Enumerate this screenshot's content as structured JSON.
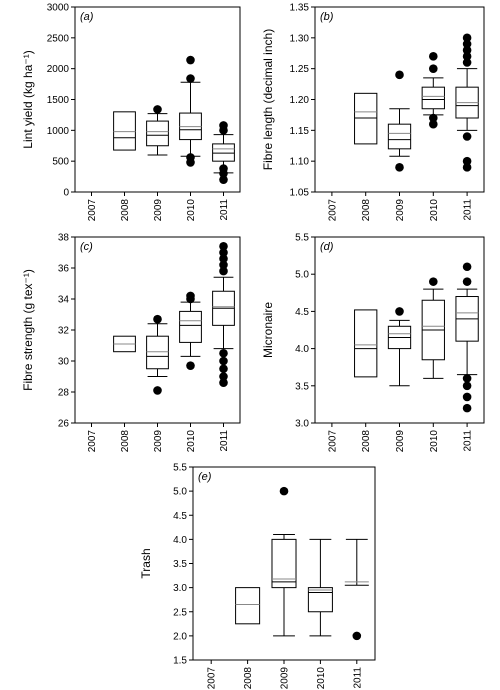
{
  "chart_data": [
    {
      "type": "box",
      "panel": "a",
      "panel_label": "(a)",
      "ylabel": "Lint yield (kg ha⁻¹)",
      "ylim": [
        0,
        3000
      ],
      "yticks": [
        0,
        500,
        1000,
        1500,
        2000,
        2500,
        3000
      ],
      "categories": [
        "2007",
        "2008",
        "2009",
        "2010",
        "2011"
      ],
      "boxes": [
        null,
        {
          "whisker_low": null,
          "q1": 680,
          "median": 880,
          "mean": 980,
          "q3": 1300,
          "whisker_high": null,
          "outliers": []
        },
        {
          "whisker_low": 600,
          "q1": 750,
          "median": 920,
          "mean": 980,
          "q3": 1150,
          "whisker_high": 1270,
          "outliers": [
            1340
          ]
        },
        {
          "whisker_low": 580,
          "q1": 850,
          "median": 1010,
          "mean": 1060,
          "q3": 1280,
          "whisker_high": 1780,
          "outliers": [
            480,
            560,
            1840,
            2140
          ]
        },
        {
          "whisker_low": 310,
          "q1": 500,
          "median": 630,
          "mean": 700,
          "q3": 780,
          "whisker_high": 930,
          "outliers": [
            200,
            300,
            380,
            1000,
            1080
          ]
        }
      ]
    },
    {
      "type": "box",
      "panel": "b",
      "panel_label": "(b)",
      "ylabel": "Fibre length (decimal inch)",
      "ylim": [
        1.05,
        1.35
      ],
      "yticks": [
        1.05,
        1.1,
        1.15,
        1.2,
        1.25,
        1.3,
        1.35
      ],
      "categories": [
        "2007",
        "2008",
        "2009",
        "2010",
        "2011"
      ],
      "boxes": [
        null,
        {
          "whisker_low": null,
          "q1": 1.128,
          "median": 1.17,
          "mean": 1.18,
          "q3": 1.21,
          "whisker_high": null,
          "outliers": []
        },
        {
          "whisker_low": 1.108,
          "q1": 1.12,
          "median": 1.135,
          "mean": 1.145,
          "q3": 1.16,
          "whisker_high": 1.185,
          "outliers": [
            1.09,
            1.24
          ]
        },
        {
          "whisker_low": 1.175,
          "q1": 1.185,
          "median": 1.2,
          "mean": 1.205,
          "q3": 1.22,
          "whisker_high": 1.235,
          "outliers": [
            1.16,
            1.17,
            1.25,
            1.27
          ]
        },
        {
          "whisker_low": 1.15,
          "q1": 1.17,
          "median": 1.19,
          "mean": 1.195,
          "q3": 1.22,
          "whisker_high": 1.25,
          "outliers": [
            1.09,
            1.1,
            1.14,
            1.26,
            1.27,
            1.28,
            1.29,
            1.3
          ]
        }
      ]
    },
    {
      "type": "box",
      "panel": "c",
      "panel_label": "(c)",
      "ylabel": "Fibre strength (g tex⁻¹)",
      "ylim": [
        26,
        38
      ],
      "yticks": [
        26,
        28,
        30,
        32,
        34,
        36,
        38
      ],
      "categories": [
        "2007",
        "2008",
        "2009",
        "2010",
        "2011"
      ],
      "boxes": [
        null,
        {
          "whisker_low": null,
          "q1": 30.6,
          "median": 31.1,
          "mean": 31.1,
          "q3": 31.6,
          "whisker_high": null,
          "outliers": []
        },
        {
          "whisker_low": 29.0,
          "q1": 29.5,
          "median": 30.3,
          "mean": 30.6,
          "q3": 31.6,
          "whisker_high": 32.4,
          "outliers": [
            28.1,
            32.7
          ]
        },
        {
          "whisker_low": 30.3,
          "q1": 31.2,
          "median": 32.3,
          "mean": 32.6,
          "q3": 33.2,
          "whisker_high": 33.8,
          "outliers": [
            29.7,
            34.0,
            34.2
          ]
        },
        {
          "whisker_low": 30.8,
          "q1": 32.3,
          "median": 33.4,
          "mean": 33.5,
          "q3": 34.5,
          "whisker_high": 35.4,
          "outliers": [
            28.6,
            29.0,
            29.5,
            30.0,
            30.5,
            35.8,
            36.2,
            36.6,
            37.0,
            37.4
          ]
        }
      ]
    },
    {
      "type": "box",
      "panel": "d",
      "panel_label": "(d)",
      "ylabel": "Micronaire",
      "ylim": [
        3.0,
        5.5
      ],
      "yticks": [
        3.0,
        3.5,
        4.0,
        4.5,
        5.0,
        5.5
      ],
      "categories": [
        "2007",
        "2008",
        "2009",
        "2010",
        "2011"
      ],
      "boxes": [
        null,
        {
          "whisker_low": null,
          "q1": 3.62,
          "median": 4.0,
          "mean": 4.05,
          "q3": 4.52,
          "whisker_high": null,
          "outliers": []
        },
        {
          "whisker_low": 3.5,
          "q1": 4.0,
          "median": 4.15,
          "mean": 4.2,
          "q3": 4.3,
          "whisker_high": 4.38,
          "outliers": [
            4.5
          ]
        },
        {
          "whisker_low": 3.6,
          "q1": 3.85,
          "median": 4.25,
          "mean": 4.3,
          "q3": 4.65,
          "whisker_high": 4.8,
          "outliers": [
            4.9
          ]
        },
        {
          "whisker_low": 3.65,
          "q1": 4.1,
          "median": 4.4,
          "mean": 4.48,
          "q3": 4.7,
          "whisker_high": 4.8,
          "outliers": [
            3.2,
            3.35,
            3.5,
            3.6,
            4.9,
            5.1
          ]
        }
      ]
    },
    {
      "type": "box",
      "panel": "e",
      "panel_label": "(e)",
      "ylabel": "Trash",
      "ylim": [
        1.5,
        5.5
      ],
      "yticks": [
        1.5,
        2.0,
        2.5,
        3.0,
        3.5,
        4.0,
        4.5,
        5.0,
        5.5
      ],
      "categories": [
        "2007",
        "2008",
        "2009",
        "2010",
        "2011"
      ],
      "boxes": [
        null,
        {
          "whisker_low": null,
          "q1": 2.25,
          "median": 2.65,
          "mean": 2.65,
          "q3": 3.0,
          "whisker_high": null,
          "outliers": []
        },
        {
          "whisker_low": 2.0,
          "q1": 3.0,
          "median": 3.12,
          "mean": 3.18,
          "q3": 4.0,
          "whisker_high": 4.1,
          "outliers": [
            5.0
          ]
        },
        {
          "whisker_low": 2.0,
          "q1": 2.5,
          "median": 2.9,
          "mean": 2.95,
          "q3": 3.0,
          "whisker_high": 4.0,
          "outliers": []
        },
        {
          "whisker_low": null,
          "q1": null,
          "median": 3.05,
          "mean": 3.12,
          "q3": null,
          "whisker_high": 4.0,
          "outliers": [
            2.0
          ],
          "line_only": true
        }
      ]
    }
  ]
}
